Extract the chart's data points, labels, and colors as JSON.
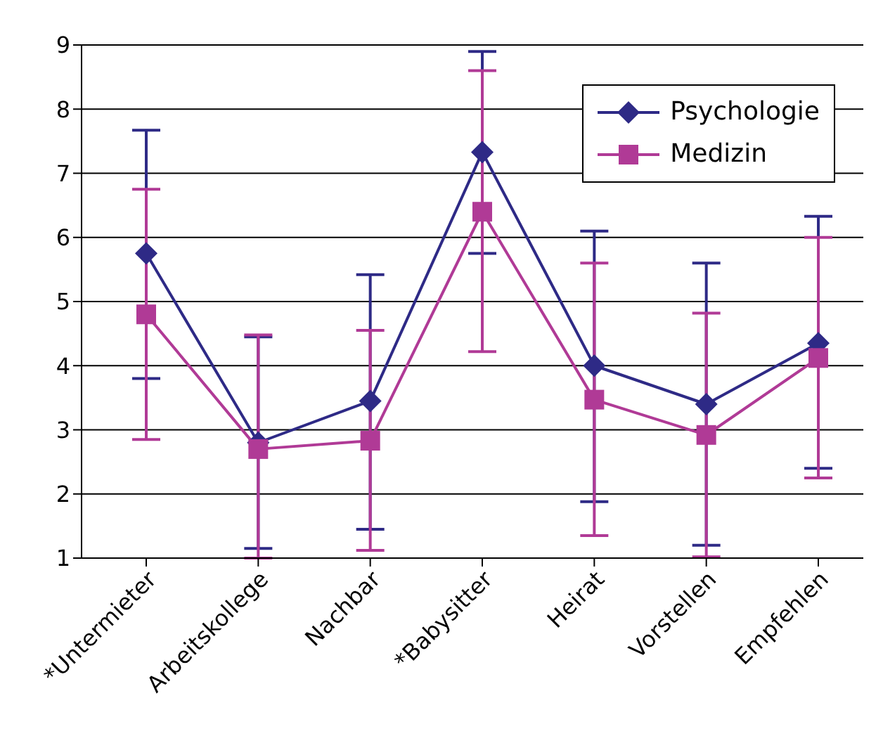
{
  "chart_data": {
    "type": "line",
    "categories": [
      "*Untermieter",
      "Arbeitskollege",
      "Nachbar",
      "*Babysitter",
      "Heirat",
      "Vorstellen",
      "Empfehlen"
    ],
    "series": [
      {
        "name": "Psychologie",
        "color": "#2e2a86",
        "marker": "diamond",
        "values": [
          5.75,
          2.8,
          3.45,
          7.33,
          4.0,
          3.4,
          4.35
        ],
        "errors": [
          [
            3.8,
            7.67
          ],
          [
            1.15,
            4.45
          ],
          [
            1.45,
            5.42
          ],
          [
            5.75,
            8.9
          ],
          [
            1.88,
            6.1
          ],
          [
            1.2,
            5.6
          ],
          [
            2.4,
            6.33
          ]
        ]
      },
      {
        "name": "Medizin",
        "color": "#b03a96",
        "marker": "square",
        "values": [
          4.8,
          2.7,
          2.83,
          6.4,
          3.47,
          2.92,
          4.12
        ],
        "errors": [
          [
            2.85,
            6.75
          ],
          [
            1.0,
            4.48
          ],
          [
            1.12,
            4.55
          ],
          [
            4.22,
            8.6
          ],
          [
            1.35,
            5.6
          ],
          [
            1.02,
            4.82
          ],
          [
            2.25,
            6.0
          ]
        ]
      }
    ],
    "ylim": [
      1,
      9
    ],
    "yticks": [
      1,
      2,
      3,
      4,
      5,
      6,
      7,
      8,
      9
    ],
    "grid": "y",
    "legend": "top right",
    "line_style": "solid"
  }
}
